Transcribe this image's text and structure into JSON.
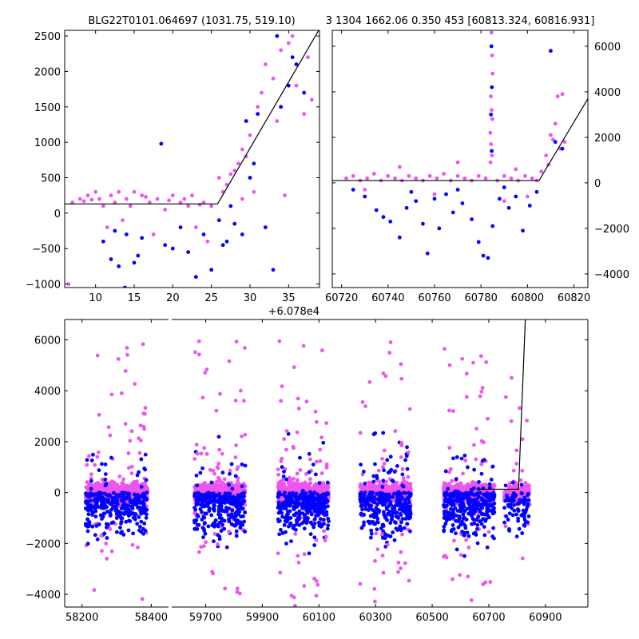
{
  "title_left": "BLG22T0101.064697 (1031.75, 519.10)",
  "title_right": "3 1304 1662.06 0.350 453 [60813.324, 60816.931]",
  "colors": {
    "blue": "#0000ff",
    "magenta": "#ee55ee",
    "model": "#000000"
  },
  "chart_data": [
    {
      "type": "scatter",
      "name": "top-left",
      "xlim": [
        6.0,
        39.0
      ],
      "ylim": [
        -1050,
        2580
      ],
      "x_ticks": [
        10,
        15,
        20,
        25,
        30,
        35
      ],
      "y_ticks": [
        -1000,
        -500,
        0,
        500,
        1000,
        1500,
        2000,
        2500
      ],
      "x_offset_label": "+6.078e4",
      "model": [
        [
          6.0,
          130
        ],
        [
          25.8,
          130
        ],
        [
          39.0,
          2600
        ]
      ],
      "magenta_points": [
        [
          6.5,
          -1000
        ],
        [
          7.0,
          150
        ],
        [
          8.0,
          200
        ],
        [
          9.0,
          250
        ],
        [
          10.0,
          300
        ],
        [
          10.5,
          200
        ],
        [
          11.0,
          100
        ],
        [
          12.0,
          250
        ],
        [
          12.5,
          150
        ],
        [
          13.0,
          300
        ],
        [
          14.0,
          200
        ],
        [
          14.5,
          100
        ],
        [
          15.0,
          300
        ],
        [
          16.0,
          250
        ],
        [
          17.0,
          150
        ],
        [
          17.5,
          -300
        ],
        [
          18.0,
          200
        ],
        [
          19.0,
          50
        ],
        [
          20.0,
          250
        ],
        [
          21.0,
          150
        ],
        [
          22.0,
          100
        ],
        [
          22.5,
          250
        ],
        [
          23.0,
          -200
        ],
        [
          24.0,
          150
        ],
        [
          25.0,
          100
        ],
        [
          26.0,
          500
        ],
        [
          27.0,
          400
        ],
        [
          28.0,
          600
        ],
        [
          28.5,
          700
        ],
        [
          29.0,
          900
        ],
        [
          29.5,
          800
        ],
        [
          30.0,
          1100
        ],
        [
          31.0,
          1500
        ],
        [
          31.5,
          1700
        ],
        [
          32.0,
          2100
        ],
        [
          33.0,
          1900
        ],
        [
          34.0,
          2300
        ],
        [
          35.0,
          2400
        ],
        [
          35.5,
          2500
        ],
        [
          36.0,
          1800
        ],
        [
          37.0,
          1400
        ],
        [
          37.5,
          2200
        ],
        [
          38.0,
          1600
        ],
        [
          34.5,
          250
        ],
        [
          33.5,
          1300
        ],
        [
          30.5,
          300
        ],
        [
          29.0,
          200
        ],
        [
          27.5,
          550
        ],
        [
          26.5,
          300
        ],
        [
          24.5,
          -400
        ],
        [
          13.5,
          -100
        ],
        [
          11.5,
          -200
        ],
        [
          8.5,
          170
        ],
        [
          9.5,
          190
        ],
        [
          16.5,
          230
        ],
        [
          19.5,
          180
        ],
        [
          21.5,
          200
        ],
        [
          23.5,
          120
        ]
      ],
      "blue_points": [
        [
          11.0,
          -400
        ],
        [
          12.0,
          -650
        ],
        [
          13.0,
          -750
        ],
        [
          14.0,
          -300
        ],
        [
          13.8,
          -1050
        ],
        [
          15.0,
          -700
        ],
        [
          16.0,
          -350
        ],
        [
          18.5,
          980
        ],
        [
          19.0,
          -450
        ],
        [
          20.0,
          -500
        ],
        [
          21.0,
          -200
        ],
        [
          22.0,
          -550
        ],
        [
          23.0,
          -900
        ],
        [
          24.0,
          -300
        ],
        [
          25.0,
          -800
        ],
        [
          26.0,
          -100
        ],
        [
          27.0,
          -400
        ],
        [
          28.0,
          -150
        ],
        [
          29.0,
          -300
        ],
        [
          30.0,
          500
        ],
        [
          31.0,
          1400
        ],
        [
          33.0,
          -800
        ],
        [
          34.0,
          1500
        ],
        [
          35.0,
          1800
        ],
        [
          36.0,
          2100
        ],
        [
          32.0,
          -200
        ],
        [
          29.5,
          1300
        ],
        [
          30.5,
          700
        ],
        [
          33.5,
          2500
        ],
        [
          35.5,
          2200
        ],
        [
          37.0,
          1700
        ],
        [
          27.5,
          100
        ],
        [
          26.5,
          -450
        ],
        [
          15.5,
          -600
        ],
        [
          12.5,
          -250
        ]
      ]
    },
    {
      "type": "scatter",
      "name": "top-right",
      "xlim": [
        60716.0,
        60826.0
      ],
      "ylim": [
        -4600,
        6700
      ],
      "x_ticks": [
        60720,
        60740,
        60760,
        60780,
        60800,
        60820
      ],
      "y_ticks": [
        -4000,
        -2000,
        0,
        2000,
        4000,
        6000
      ],
      "model": [
        [
          60716.0,
          100
        ],
        [
          60805.0,
          100
        ],
        [
          60826.0,
          3700
        ]
      ],
      "magenta_points": [
        [
          60784.5,
          6600
        ],
        [
          60784.8,
          5600
        ],
        [
          60785.0,
          4800
        ],
        [
          60784.2,
          3800
        ],
        [
          60784.6,
          3200
        ],
        [
          60784.9,
          2800
        ],
        [
          60784.0,
          2200
        ],
        [
          60784.3,
          1700
        ],
        [
          60784.7,
          1200
        ],
        [
          60784.1,
          900
        ],
        [
          60815.0,
          3900
        ],
        [
          60813.0,
          3800
        ],
        [
          60812.0,
          2600
        ],
        [
          60810.0,
          2100
        ],
        [
          60811.0,
          1900
        ],
        [
          60814.0,
          1500
        ],
        [
          60816.0,
          1800
        ],
        [
          60808.0,
          1200
        ],
        [
          60809.0,
          800
        ],
        [
          60806.0,
          500
        ],
        [
          60722.0,
          200
        ],
        [
          60725.0,
          300
        ],
        [
          60728.0,
          100
        ],
        [
          60731.0,
          200
        ],
        [
          60734.0,
          400
        ],
        [
          60737.0,
          100
        ],
        [
          60740.0,
          300
        ],
        [
          60743.0,
          200
        ],
        [
          60746.0,
          100
        ],
        [
          60749.0,
          300
        ],
        [
          60752.0,
          200
        ],
        [
          60755.0,
          100
        ],
        [
          60758.0,
          300
        ],
        [
          60761.0,
          200
        ],
        [
          60764.0,
          400
        ],
        [
          60767.0,
          100
        ],
        [
          60770.0,
          300
        ],
        [
          60773.0,
          200
        ],
        [
          60776.0,
          100
        ],
        [
          60779.0,
          300
        ],
        [
          60782.0,
          200
        ],
        [
          60787.0,
          100
        ],
        [
          60790.0,
          300
        ],
        [
          60793.0,
          200
        ],
        [
          60796.0,
          100
        ],
        [
          60799.0,
          300
        ],
        [
          60802.0,
          200
        ],
        [
          60804.0,
          100
        ],
        [
          60730.0,
          -300
        ],
        [
          60760.0,
          -500
        ],
        [
          60790.0,
          -800
        ],
        [
          60800.0,
          -600
        ],
        [
          60745.0,
          700
        ],
        [
          60770.0,
          900
        ],
        [
          60795.0,
          600
        ]
      ],
      "blue_points": [
        [
          60784.5,
          6000
        ],
        [
          60784.7,
          4200
        ],
        [
          60784.3,
          3000
        ],
        [
          60784.6,
          1400
        ],
        [
          60810.0,
          5800
        ],
        [
          60812.0,
          1800
        ],
        [
          60815.0,
          1500
        ],
        [
          60725.0,
          -300
        ],
        [
          60730.0,
          -600
        ],
        [
          60735.0,
          -1200
        ],
        [
          60738.0,
          -1500
        ],
        [
          60745.0,
          -2400
        ],
        [
          60748.0,
          -1100
        ],
        [
          60752.0,
          -800
        ],
        [
          60755.0,
          -1800
        ],
        [
          60757.0,
          -3100
        ],
        [
          60760.0,
          -700
        ],
        [
          60762.0,
          -2000
        ],
        [
          60765.0,
          -500
        ],
        [
          60768.0,
          -1300
        ],
        [
          60772.0,
          -900
        ],
        [
          60776.0,
          -1600
        ],
        [
          60779.0,
          -2600
        ],
        [
          60781.0,
          -3200
        ],
        [
          60783.0,
          -3300
        ],
        [
          60785.0,
          -1900
        ],
        [
          60788.0,
          -700
        ],
        [
          60792.0,
          -1100
        ],
        [
          60795.0,
          -600
        ],
        [
          60798.0,
          -2100
        ],
        [
          60801.0,
          -1000
        ],
        [
          60804.0,
          -400
        ],
        [
          60741.0,
          -1700
        ],
        [
          60750.0,
          -400
        ],
        [
          60770.0,
          -300
        ],
        [
          60790.0,
          -200
        ]
      ]
    },
    {
      "type": "scatter",
      "name": "bottom",
      "segments": [
        {
          "xlim": [
            58150.0,
            58450.0
          ],
          "x_ticks": [
            58200,
            58400
          ],
          "center": 58300,
          "half_width": 95
        },
        {
          "xlim": [
            59580.0,
            61050.0
          ],
          "x_ticks": [
            59700,
            59900,
            60100,
            60300,
            60500,
            60700,
            60900
          ],
          "centers": [
            59750,
            60045,
            60335,
            60630,
            60800
          ]
        }
      ],
      "ylim": [
        -4500,
        6800
      ],
      "y_ticks": [
        -4000,
        -2000,
        0,
        2000,
        4000,
        6000
      ],
      "model": [
        [
          60660.0,
          130
        ],
        [
          60805.0,
          130
        ],
        [
          60829.0,
          6800
        ]
      ]
    }
  ]
}
